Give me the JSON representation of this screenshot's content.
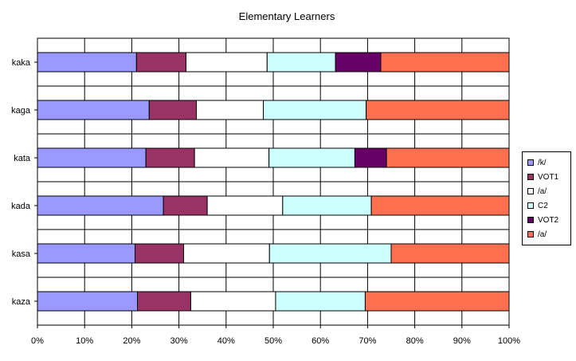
{
  "chart_data": {
    "type": "bar",
    "orientation": "horizontal",
    "stacked": "percent",
    "title": "Elementary Learners",
    "categories": [
      "kaka",
      "kaga",
      "kata",
      "kada",
      "kasa",
      "kaza"
    ],
    "xlim": [
      0,
      100
    ],
    "x_ticks": [
      "0%",
      "10%",
      "20%",
      "30%",
      "40%",
      "50%",
      "60%",
      "70%",
      "80%",
      "90%",
      "100%"
    ],
    "grid": true,
    "legend_position": "right",
    "series": [
      {
        "name": "/k/",
        "color": "#9999ff",
        "values": [
          21.0,
          23.7,
          23.0,
          26.7,
          20.7,
          21.2
        ]
      },
      {
        "name": "VOT1",
        "color": "#993366",
        "values": [
          10.5,
          10.0,
          10.3,
          9.3,
          10.3,
          11.3
        ]
      },
      {
        "name": "/a/",
        "color": "#ffffff",
        "values": [
          17.2,
          14.2,
          15.8,
          16.0,
          18.2,
          18.0
        ]
      },
      {
        "name": "C2",
        "color": "#ccffff",
        "values": [
          14.5,
          21.8,
          18.2,
          18.8,
          25.8,
          19.0
        ]
      },
      {
        "name": "VOT2",
        "color": "#660066",
        "values": [
          9.6,
          0,
          6.7,
          0,
          0,
          0
        ]
      },
      {
        "name": "/a/",
        "color": "#ff6f50",
        "values": [
          27.2,
          30.3,
          26.0,
          29.2,
          25.0,
          30.5
        ]
      }
    ]
  }
}
